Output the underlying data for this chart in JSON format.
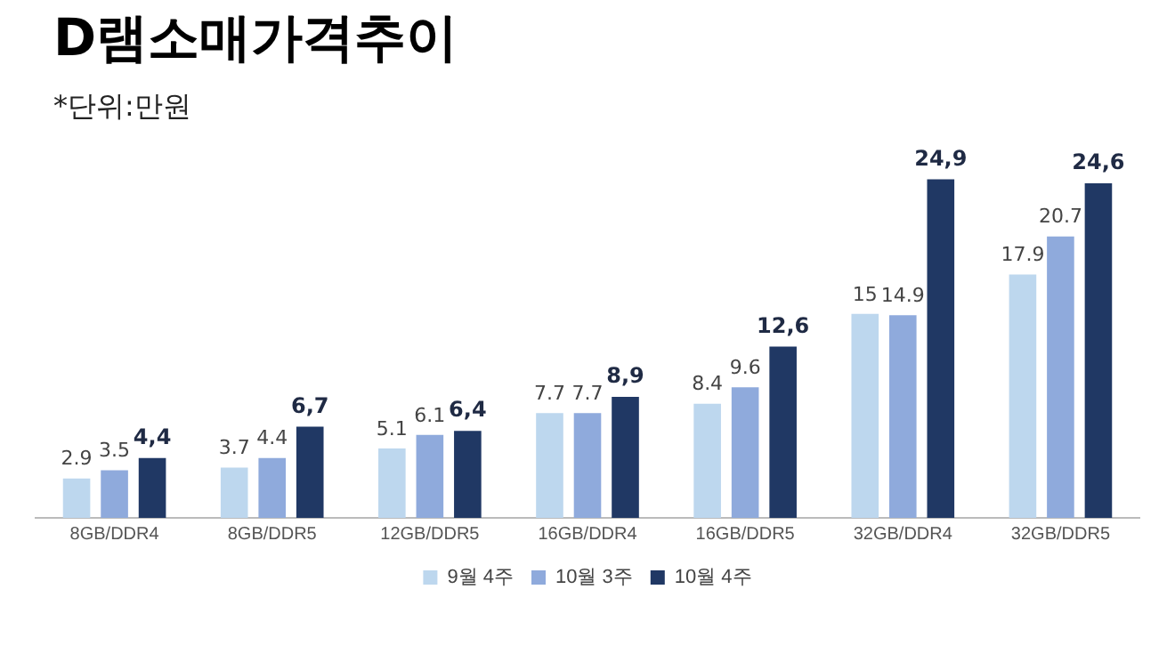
{
  "chart_data": {
    "type": "bar",
    "title": "D램소매가격추이",
    "subtitle": "*단위:만원",
    "categories": [
      "8GB/DDR4",
      "8GB/DDR5",
      "12GB/DDR5",
      "16GB/DDR4",
      "16GB/DDR5",
      "32GB/DDR4",
      "32GB/DDR5"
    ],
    "series": [
      {
        "name": "9월 4주",
        "color": "#bdd7ee",
        "values": [
          2.9,
          3.7,
          5.1,
          7.7,
          8.4,
          15,
          17.9
        ],
        "value_labels": [
          "2.9",
          "3.7",
          "5.1",
          "7.7",
          "8.4",
          "15",
          "17.9"
        ]
      },
      {
        "name": "10월 3주",
        "color": "#8faadc",
        "values": [
          3.5,
          4.4,
          6.1,
          7.7,
          9.6,
          14.9,
          20.7
        ],
        "value_labels": [
          "3.5",
          "4.4",
          "6.1",
          "7.7",
          "9.6",
          "14.9",
          "20.7"
        ]
      },
      {
        "name": "10월 4주",
        "color": "#203864",
        "values": [
          4.4,
          6.7,
          6.4,
          8.9,
          12.6,
          24.9,
          24.6
        ],
        "value_labels": [
          "4,4",
          "6,7",
          "6,4",
          "8,9",
          "12,6",
          "24,9",
          "24,6"
        ]
      }
    ],
    "legend": "bottom",
    "grid": false
  }
}
